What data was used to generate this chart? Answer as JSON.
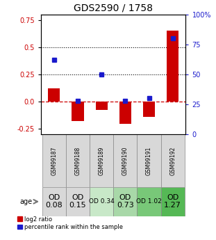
{
  "title": "GDS2590 / 1758",
  "samples": [
    "GSM99187",
    "GSM99188",
    "GSM99189",
    "GSM99190",
    "GSM99191",
    "GSM99192"
  ],
  "log2_ratio": [
    0.12,
    -0.18,
    -0.075,
    -0.2,
    -0.14,
    0.65
  ],
  "percentile_rank_pct": [
    62,
    28,
    50,
    28,
    30,
    80
  ],
  "bar_color": "#cc0000",
  "dot_color": "#1a1acc",
  "ylim_left": [
    -0.3,
    0.8
  ],
  "ylim_right": [
    0,
    100
  ],
  "yticks_left": [
    -0.25,
    0.0,
    0.25,
    0.5,
    0.75
  ],
  "yticks_right": [
    0,
    25,
    50,
    75,
    100
  ],
  "hline_dashed_red": 0.0,
  "hline_dotted": [
    0.25,
    0.5
  ],
  "age_label": "age",
  "age_values": [
    "OD\n0.08",
    "OD\n0.15",
    "OD 0.34",
    "OD\n0.73",
    "OD 1.02",
    "OD\n1.27"
  ],
  "age_bg_colors": [
    "#d8d8d8",
    "#d8d8d8",
    "#c8e8c8",
    "#a8d8a8",
    "#78c878",
    "#55b855"
  ],
  "age_font_sizes": [
    8,
    8,
    6.5,
    8,
    6.5,
    8
  ],
  "legend_red": "log2 ratio",
  "legend_blue": "percentile rank within the sample",
  "title_fontsize": 10,
  "left_tick_color": "#cc0000",
  "right_tick_color": "#1a1acc",
  "tick_fontsize": 7,
  "bar_width": 0.5,
  "dot_size": 5
}
